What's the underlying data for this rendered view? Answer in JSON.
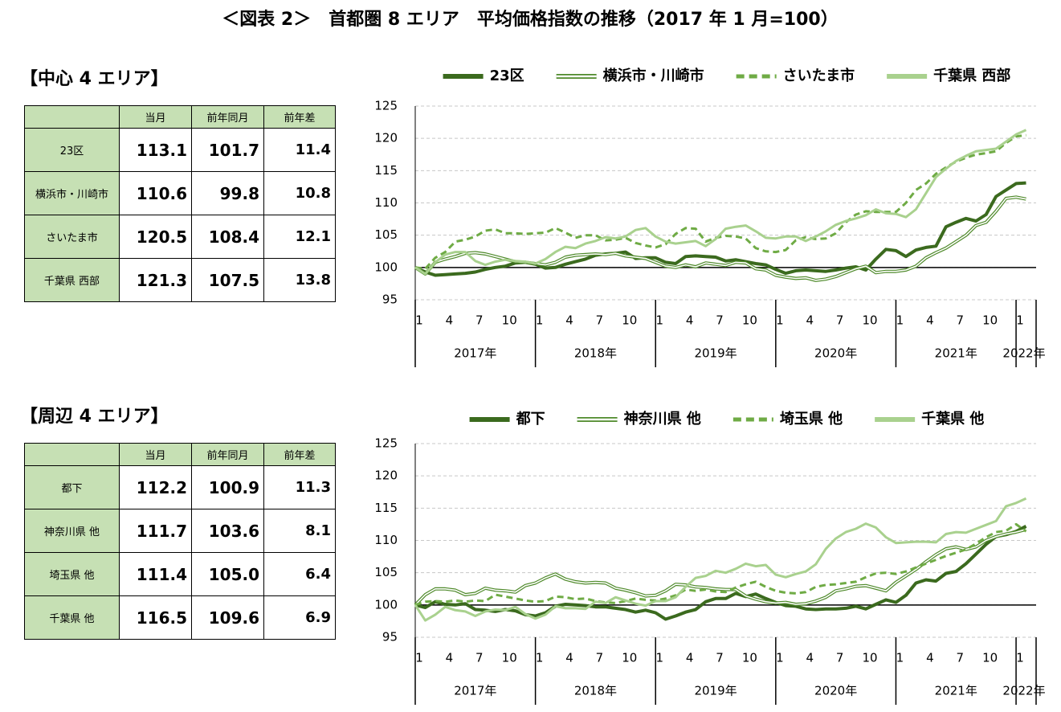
{
  "title": "＜図表 2＞　首都圏 8 エリア　平均価格指数の推移（2017 年 1 月=100）",
  "tables": [
    {
      "heading": "【中心 4 エリア】",
      "columns": [
        "当月",
        "前年同月",
        "前年差"
      ],
      "rows": [
        {
          "label": "23区",
          "values": [
            113.1,
            101.7,
            11.4
          ]
        },
        {
          "label": "横浜市・川崎市",
          "values": [
            110.6,
            99.8,
            10.8
          ]
        },
        {
          "label": "さいたま市",
          "values": [
            120.5,
            108.4,
            12.1
          ]
        },
        {
          "label": "千葉県 西部",
          "values": [
            121.3,
            107.5,
            13.8
          ]
        }
      ]
    },
    {
      "heading": "【周辺 4 エリア】",
      "columns": [
        "当月",
        "前年同月",
        "前年差"
      ],
      "rows": [
        {
          "label": "都下",
          "values": [
            112.2,
            100.9,
            11.3
          ]
        },
        {
          "label": "神奈川県 他",
          "values": [
            111.7,
            103.6,
            8.1
          ]
        },
        {
          "label": "埼玉県 他",
          "values": [
            111.4,
            105.0,
            6.4
          ]
        },
        {
          "label": "千葉県 他",
          "values": [
            116.5,
            109.6,
            6.9
          ]
        }
      ]
    }
  ],
  "chart_data": [
    {
      "type": "line",
      "categories": [
        "1",
        null,
        null,
        "4",
        null,
        null,
        "7",
        null,
        null,
        "10",
        null,
        null,
        "1",
        null,
        null,
        "4",
        null,
        null,
        "7",
        null,
        null,
        "10",
        null,
        null,
        "1",
        null,
        null,
        "4",
        null,
        null,
        "7",
        null,
        null,
        "10",
        null,
        null,
        "1",
        null,
        null,
        "4",
        null,
        null,
        "7",
        null,
        null,
        "10",
        null,
        null,
        "1",
        null,
        null,
        "4",
        null,
        null,
        "7",
        null,
        null,
        "10",
        null,
        null,
        "1",
        null
      ],
      "groups": [
        "2017年",
        "2018年",
        "2019年",
        "2020年",
        "2021年",
        "2022年"
      ],
      "ylim": [
        95,
        125
      ],
      "yticks": [
        95,
        100,
        105,
        110,
        115,
        120,
        125
      ],
      "grid": true,
      "reference_line": 100,
      "series": [
        {
          "name": "23区",
          "color": "#3b6a1e",
          "line_style": "solid",
          "values": [
            100,
            99.3,
            98.8,
            98.9,
            99.0,
            99.1,
            99.3,
            99.7,
            100.0,
            100.2,
            100.7,
            100.8,
            100.5,
            99.9,
            100.0,
            100.5,
            100.9,
            101.3,
            101.9,
            102.1,
            102.2,
            102.4,
            101.4,
            101.5,
            101.5,
            100.8,
            100.6,
            101.7,
            101.8,
            101.7,
            101.6,
            101.0,
            101.2,
            100.9,
            100.6,
            100.4,
            99.7,
            99.1,
            99.5,
            99.6,
            99.5,
            99.4,
            99.6,
            99.9,
            100.1,
            99.6,
            101.3,
            102.8,
            102.6,
            101.7,
            102.7,
            103.1,
            103.3,
            106.3,
            107.0,
            107.6,
            107.2,
            108.2,
            111.0,
            112.0,
            113.0,
            113.1
          ]
        },
        {
          "name": "横浜市・川崎市",
          "color": "#4f8a2b",
          "line_style": "double",
          "values": [
            100,
            99.0,
            100.8,
            101.3,
            101.7,
            102.2,
            102.3,
            102.1,
            101.7,
            101.3,
            100.9,
            100.8,
            100.6,
            100.4,
            100.8,
            101.6,
            101.9,
            102.0,
            102.1,
            102.0,
            102.2,
            101.8,
            101.6,
            101.4,
            100.8,
            100.2,
            100.0,
            100.4,
            100.1,
            100.7,
            100.5,
            100.3,
            100.8,
            100.7,
            99.8,
            99.6,
            98.8,
            98.5,
            98.3,
            98.4,
            98.0,
            98.2,
            98.6,
            99.2,
            99.8,
            100.2,
            99.2,
            99.4,
            99.4,
            99.6,
            100.2,
            101.5,
            102.3,
            103.0,
            104.0,
            105.0,
            106.5,
            107.0,
            108.7,
            110.7,
            110.9,
            110.6
          ]
        },
        {
          "name": "さいたま市",
          "color": "#6fab45",
          "line_style": "dashed",
          "values": [
            100,
            99.8,
            101.5,
            102.4,
            104.0,
            104.3,
            104.8,
            105.7,
            105.9,
            105.3,
            105.3,
            105.2,
            105.3,
            105.4,
            106.1,
            105.4,
            104.6,
            105.0,
            105.0,
            104.2,
            104.3,
            104.6,
            103.8,
            103.4,
            103.1,
            103.6,
            105.2,
            106.1,
            106.0,
            104.0,
            104.6,
            104.9,
            104.8,
            104.5,
            103.0,
            102.5,
            102.4,
            102.7,
            104.2,
            104.7,
            104.4,
            104.5,
            105.3,
            107.0,
            108.2,
            108.7,
            108.6,
            108.6,
            108.6,
            110.0,
            112.0,
            113.0,
            114.5,
            115.5,
            116.4,
            117.0,
            117.5,
            117.7,
            118.0,
            119.3,
            120.3,
            120.5
          ]
        },
        {
          "name": "千葉県 西部",
          "color": "#a9d18e",
          "line_style": "solid",
          "values": [
            100,
            99.0,
            100.8,
            102.0,
            102.4,
            102.4,
            101.0,
            100.4,
            100.9,
            101.2,
            101.0,
            100.9,
            100.6,
            101.3,
            102.4,
            103.2,
            103.0,
            103.7,
            104.1,
            104.7,
            104.5,
            104.8,
            105.8,
            106.1,
            104.8,
            104.0,
            103.7,
            103.9,
            104.1,
            103.3,
            104.4,
            106.0,
            106.3,
            106.5,
            105.6,
            104.6,
            104.5,
            104.8,
            104.8,
            104.1,
            104.8,
            105.6,
            106.6,
            107.2,
            107.6,
            108.1,
            109.0,
            108.4,
            108.3,
            107.8,
            109.0,
            111.5,
            114.0,
            115.3,
            116.5,
            117.3,
            118.0,
            118.2,
            118.4,
            119.5,
            120.6,
            121.3
          ]
        }
      ]
    },
    {
      "type": "line",
      "categories": [
        "1",
        null,
        null,
        "4",
        null,
        null,
        "7",
        null,
        null,
        "10",
        null,
        null,
        "1",
        null,
        null,
        "4",
        null,
        null,
        "7",
        null,
        null,
        "10",
        null,
        null,
        "1",
        null,
        null,
        "4",
        null,
        null,
        "7",
        null,
        null,
        "10",
        null,
        null,
        "1",
        null,
        null,
        "4",
        null,
        null,
        "7",
        null,
        null,
        "10",
        null,
        null,
        "1",
        null,
        null,
        "4",
        null,
        null,
        "7",
        null,
        null,
        "10",
        null,
        null,
        "1",
        null
      ],
      "groups": [
        "2017年",
        "2018年",
        "2019年",
        "2020年",
        "2021年",
        "2022年"
      ],
      "ylim": [
        95,
        125
      ],
      "yticks": [
        95,
        100,
        105,
        110,
        115,
        120,
        125
      ],
      "grid": true,
      "reference_line": 100,
      "series": [
        {
          "name": "都下",
          "color": "#3b6a1e",
          "line_style": "solid",
          "values": [
            100,
            99.6,
            100.5,
            100.1,
            100.0,
            100.2,
            99.3,
            99.2,
            99.0,
            99.3,
            99.1,
            98.5,
            98.3,
            98.8,
            99.8,
            100.1,
            100.0,
            99.9,
            99.7,
            99.7,
            99.5,
            99.3,
            98.9,
            99.2,
            98.8,
            97.8,
            98.3,
            98.9,
            99.3,
            100.5,
            101.0,
            101.0,
            101.8,
            101.3,
            101.7,
            101.0,
            100.4,
            99.9,
            99.8,
            99.4,
            99.3,
            99.4,
            99.4,
            99.5,
            99.8,
            99.4,
            100.1,
            100.8,
            100.4,
            101.5,
            103.4,
            103.9,
            103.7,
            104.9,
            105.2,
            106.4,
            107.9,
            109.4,
            110.6,
            110.9,
            111.4,
            112.2
          ]
        },
        {
          "name": "神奈川県 他",
          "color": "#4f8a2b",
          "line_style": "double",
          "values": [
            100,
            101.6,
            102.5,
            102.5,
            102.3,
            101.6,
            101.8,
            102.6,
            102.3,
            102.2,
            102.0,
            103.0,
            103.4,
            104.2,
            104.8,
            104.0,
            103.6,
            103.4,
            103.5,
            103.4,
            102.6,
            102.3,
            101.9,
            101.4,
            101.5,
            102.2,
            103.2,
            103.1,
            102.8,
            102.7,
            102.5,
            102.4,
            102.4,
            101.4,
            100.9,
            100.5,
            100.3,
            100.4,
            100.1,
            100.2,
            100.6,
            101.2,
            102.2,
            102.5,
            102.9,
            103.0,
            102.6,
            102.2,
            103.5,
            104.5,
            105.5,
            106.7,
            107.8,
            108.7,
            109.0,
            108.6,
            109.0,
            110.0,
            110.6,
            111.0,
            111.3,
            111.7
          ]
        },
        {
          "name": "埼玉県 他",
          "color": "#6fab45",
          "line_style": "dashed",
          "values": [
            100,
            100.5,
            100.6,
            100.5,
            100.7,
            100.5,
            100.7,
            100.6,
            101.6,
            101.3,
            101.0,
            100.7,
            100.5,
            100.6,
            101.3,
            101.2,
            100.9,
            101.0,
            100.6,
            100.4,
            100.3,
            100.6,
            101.0,
            100.8,
            100.7,
            101.0,
            101.5,
            102.4,
            102.2,
            102.4,
            102.1,
            102.0,
            102.7,
            103.2,
            103.6,
            102.8,
            102.2,
            101.9,
            101.8,
            102.0,
            102.8,
            103.1,
            103.2,
            103.4,
            103.6,
            104.3,
            104.9,
            105.0,
            104.8,
            105.2,
            105.8,
            106.4,
            107.0,
            107.6,
            108.1,
            108.6,
            109.5,
            110.5,
            111.3,
            111.5,
            112.5,
            111.4
          ]
        },
        {
          "name": "千葉県 他",
          "color": "#a9d18e",
          "line_style": "solid",
          "values": [
            100,
            97.6,
            98.5,
            99.7,
            99.2,
            99.0,
            98.3,
            99.0,
            99.3,
            99.2,
            99.7,
            98.6,
            97.9,
            98.5,
            99.8,
            99.5,
            99.5,
            99.4,
            100.5,
            100.3,
            101.2,
            100.7,
            100.2,
            99.9,
            100.6,
            100.6,
            101.2,
            102.8,
            104.2,
            104.5,
            105.3,
            105.0,
            105.6,
            106.4,
            106.0,
            106.2,
            104.7,
            104.3,
            104.8,
            105.2,
            106.3,
            108.7,
            110.3,
            111.3,
            111.8,
            112.6,
            112.0,
            110.5,
            109.6,
            109.7,
            109.8,
            109.8,
            109.7,
            111.0,
            111.3,
            111.2,
            111.8,
            112.4,
            113.0,
            115.3,
            115.8,
            116.5
          ]
        }
      ]
    }
  ]
}
